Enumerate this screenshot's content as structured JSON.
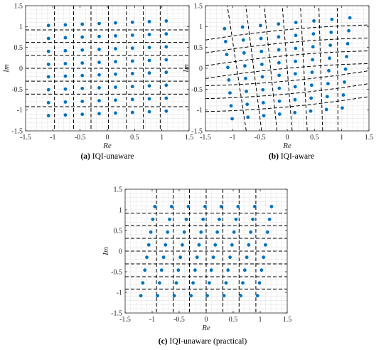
{
  "colors": {
    "points": "#0072BD",
    "grid_lines": "#000000",
    "minor_grid": "#e6e6e6",
    "axes": "#262626"
  },
  "chart_data": [
    {
      "type": "scatter",
      "caption_tag": "(a)",
      "caption_text": "IQI-unaware",
      "xlabel": "Re",
      "ylabel": "Im",
      "xlim": [
        -1.5,
        1.5
      ],
      "ylim": [
        -1.5,
        1.5
      ],
      "xticks": [
        -1.5,
        -1,
        -0.5,
        0,
        0.5,
        1,
        1.5
      ],
      "yticks": [
        -1.5,
        -1,
        -0.5,
        0,
        0.5,
        1,
        1.5
      ],
      "xtick_labels": [
        "-1.5",
        "-1",
        "-0.5",
        "0",
        "0.5",
        "1",
        "1.5"
      ],
      "ytick_labels": [
        "-1.5",
        "-1",
        "-0.5",
        "0",
        "0.5",
        "1",
        "1.5"
      ],
      "minor_grid": true,
      "decision_lines_x": [
        -0.97,
        -0.62,
        -0.3,
        0.02,
        0.35,
        0.66,
        0.97
      ],
      "decision_lines_y": [
        -0.92,
        -0.62,
        -0.31,
        0.0,
        0.31,
        0.62,
        0.92
      ],
      "constellation": {
        "x_levels": [
          -1.08,
          -0.77,
          -0.46,
          -0.15,
          0.15,
          0.46,
          0.77,
          1.08
        ],
        "y_levels": [
          -1.08,
          -0.77,
          -0.46,
          -0.15,
          0.15,
          0.46,
          0.77,
          1.08
        ],
        "x_shift_per_y": 0.0,
        "y_shift_per_x": 0.05,
        "x_scale_per_y": 0.0
      }
    },
    {
      "type": "scatter",
      "caption_tag": "(b)",
      "caption_text": "IQI-aware",
      "xlabel": "Re",
      "ylabel": "Im",
      "xlim": [
        -1.5,
        1.5
      ],
      "ylim": [
        -1.5,
        1.5
      ],
      "xticks": [
        -1.5,
        -1,
        -0.5,
        0,
        0.5,
        1,
        1.5
      ],
      "yticks": [
        -1.5,
        -1,
        -0.5,
        0,
        0.5,
        1,
        1.5
      ],
      "xtick_labels": [
        "-1.5",
        "-1",
        "-0.5",
        "0",
        "0.5",
        "1",
        "1.5"
      ],
      "ytick_labels": [
        "-1.5",
        "-1",
        "-0.5",
        "0",
        "0.5",
        "1",
        "1.5"
      ],
      "minor_grid": true,
      "curved_decision_lines": true,
      "constellation": {
        "x_levels": [
          -1.08,
          -0.77,
          -0.46,
          -0.15,
          0.15,
          0.46,
          0.77,
          1.08
        ],
        "y_levels": [
          -1.08,
          -0.77,
          -0.46,
          -0.15,
          0.15,
          0.46,
          0.77,
          1.08
        ],
        "x_shift_per_y": 0.0,
        "y_shift_per_x": 0.12,
        "x_scale_per_y": 0.06
      }
    },
    {
      "type": "scatter",
      "caption_tag": "(c)",
      "caption_text": "IQI-unaware (practical)",
      "xlabel": "Re",
      "ylabel": "Im",
      "xlim": [
        -1.5,
        1.5
      ],
      "ylim": [
        -1.5,
        1.5
      ],
      "xticks": [
        -1.5,
        -1,
        -0.5,
        0,
        0.5,
        1,
        1.5
      ],
      "yticks": [
        -1.5,
        -1,
        -0.5,
        0,
        0.5,
        1,
        1.5
      ],
      "xtick_labels": [
        "-1.5",
        "-1",
        "-0.5",
        "0",
        "0.5",
        "1",
        "1.5"
      ],
      "ytick_labels": [
        "-1.5",
        "-1",
        "-0.5",
        "0",
        "0.5",
        "1",
        "1.5"
      ],
      "minor_grid": true,
      "decision_lines_x": [
        -0.92,
        -0.61,
        -0.31,
        0.0,
        0.31,
        0.61,
        0.92
      ],
      "decision_lines_y": [
        -0.92,
        -0.62,
        -0.31,
        0.0,
        0.31,
        0.62,
        0.92
      ],
      "constellation": {
        "x_levels": [
          -1.08,
          -0.77,
          -0.46,
          -0.15,
          0.15,
          0.46,
          0.77,
          1.08
        ],
        "y_levels": [
          -1.08,
          -0.77,
          -0.46,
          -0.15,
          0.15,
          0.46,
          0.77,
          1.08
        ],
        "x_shift_per_y": 0.12,
        "y_shift_per_x": 0.0,
        "x_scale_per_y": 0.0
      }
    }
  ]
}
